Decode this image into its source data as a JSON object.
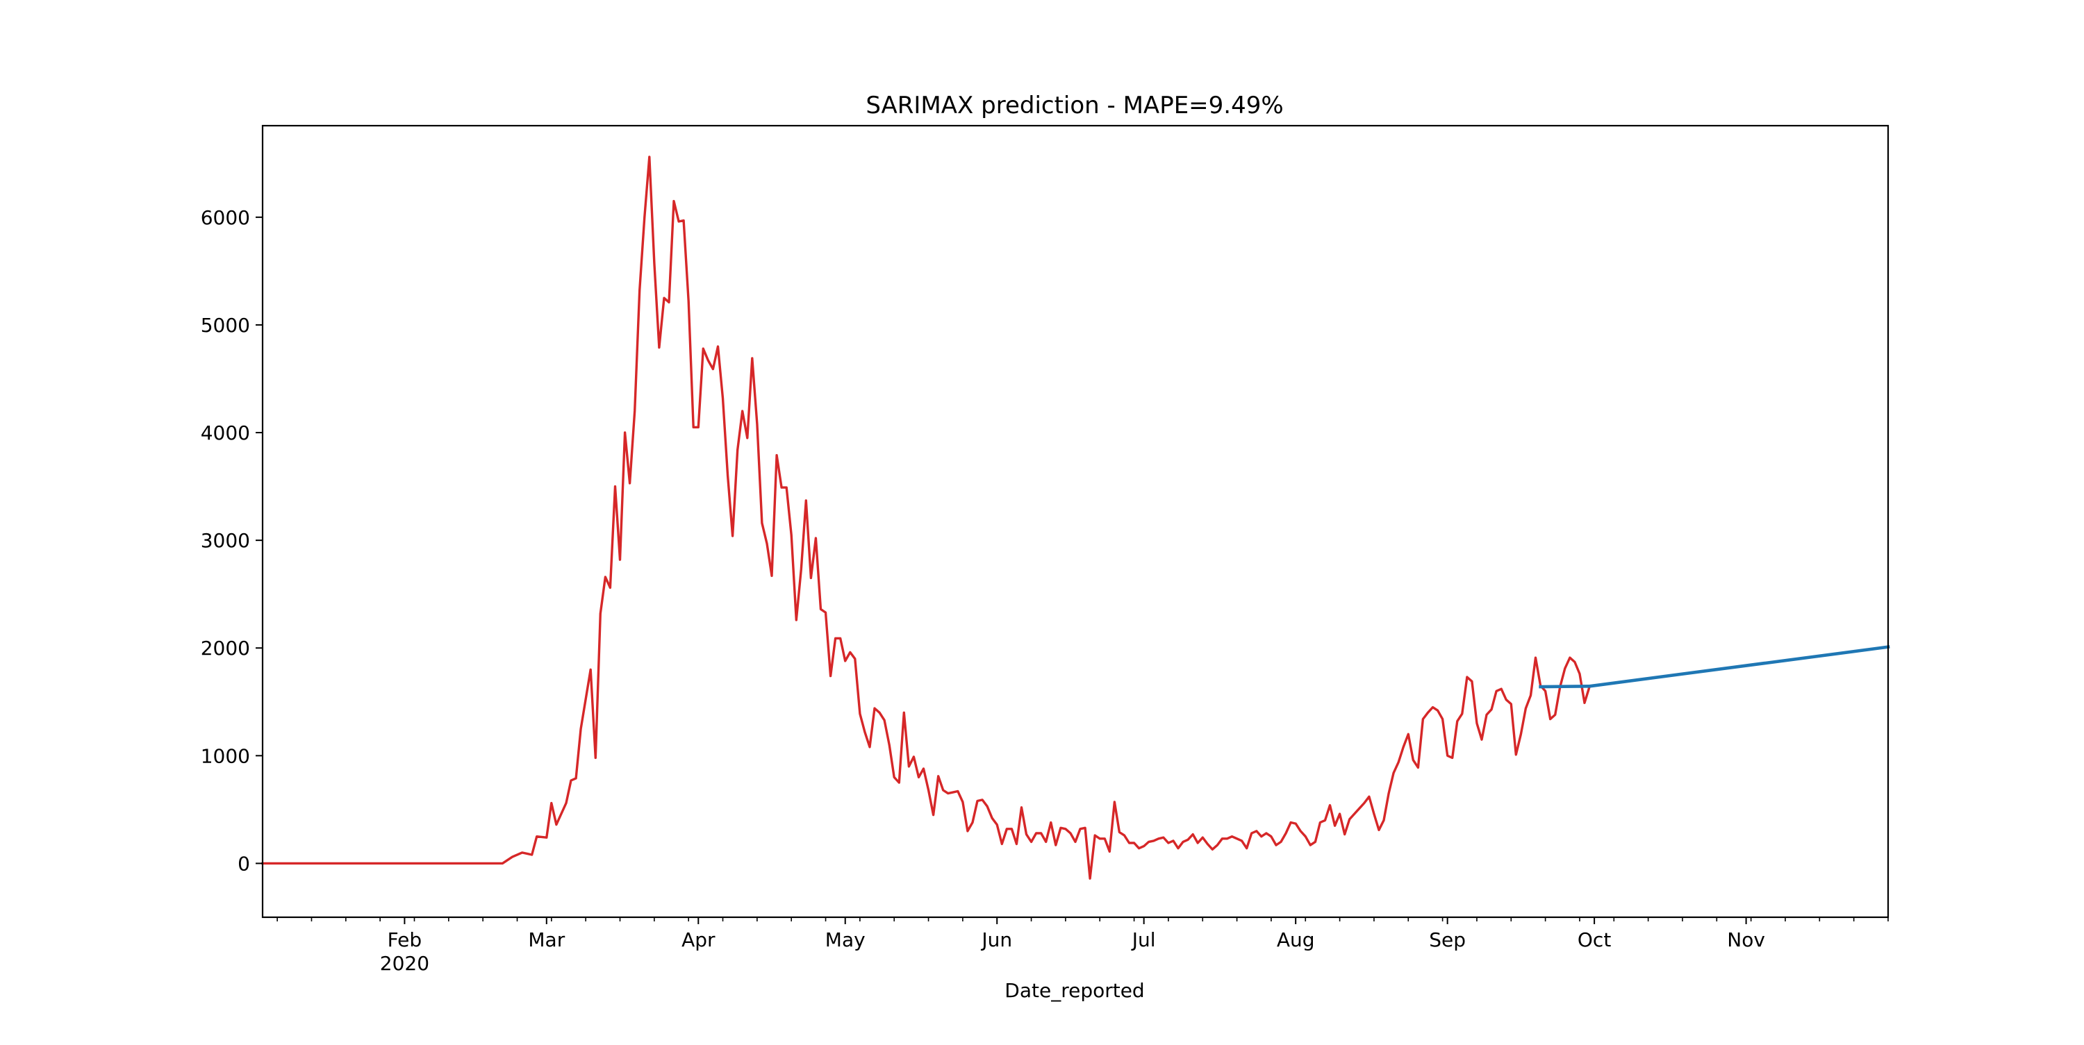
{
  "chart_data": {
    "type": "line",
    "title": "SARIMAX prediction - MAPE=9.49%",
    "xlabel": "Date_reported",
    "ylabel": "",
    "xlim": [
      "2020-01-03",
      "2020-11-30"
    ],
    "ylim": [
      -500,
      6850
    ],
    "grid": false,
    "legend": "none",
    "x_tick_labels": [
      {
        "date": "2020-02-01",
        "label": "Feb",
        "sublabel": "2020"
      },
      {
        "date": "2020-03-01",
        "label": "Mar",
        "sublabel": ""
      },
      {
        "date": "2020-04-01",
        "label": "Apr",
        "sublabel": ""
      },
      {
        "date": "2020-05-01",
        "label": "May",
        "sublabel": ""
      },
      {
        "date": "2020-06-01",
        "label": "Jun",
        "sublabel": ""
      },
      {
        "date": "2020-07-01",
        "label": "Jul",
        "sublabel": ""
      },
      {
        "date": "2020-08-01",
        "label": "Aug",
        "sublabel": ""
      },
      {
        "date": "2020-09-01",
        "label": "Sep",
        "sublabel": ""
      },
      {
        "date": "2020-10-01",
        "label": "Oct",
        "sublabel": ""
      },
      {
        "date": "2020-11-01",
        "label": "Nov",
        "sublabel": ""
      }
    ],
    "y_ticks": [
      0,
      1000,
      2000,
      3000,
      4000,
      5000,
      6000
    ],
    "series": [
      {
        "color": "#d62728",
        "points": [
          [
            "2020-01-03",
            0
          ],
          [
            "2020-02-21",
            0
          ],
          [
            "2020-02-23",
            60
          ],
          [
            "2020-02-25",
            100
          ],
          [
            "2020-02-27",
            80
          ],
          [
            "2020-02-28",
            250
          ],
          [
            "2020-03-01",
            240
          ],
          [
            "2020-03-02",
            560
          ],
          [
            "2020-03-03",
            360
          ],
          [
            "2020-03-05",
            560
          ],
          [
            "2020-03-06",
            770
          ],
          [
            "2020-03-07",
            790
          ],
          [
            "2020-03-08",
            1250
          ],
          [
            "2020-03-10",
            1800
          ],
          [
            "2020-03-11",
            980
          ],
          [
            "2020-03-12",
            2320
          ],
          [
            "2020-03-13",
            2660
          ],
          [
            "2020-03-14",
            2560
          ],
          [
            "2020-03-15",
            3500
          ],
          [
            "2020-03-16",
            2820
          ],
          [
            "2020-03-17",
            4000
          ],
          [
            "2020-03-18",
            3530
          ],
          [
            "2020-03-19",
            4200
          ],
          [
            "2020-03-20",
            5320
          ],
          [
            "2020-03-21",
            6000
          ],
          [
            "2020-03-22",
            6560
          ],
          [
            "2020-03-23",
            5570
          ],
          [
            "2020-03-24",
            4790
          ],
          [
            "2020-03-25",
            5250
          ],
          [
            "2020-03-26",
            5210
          ],
          [
            "2020-03-27",
            6150
          ],
          [
            "2020-03-28",
            5960
          ],
          [
            "2020-03-29",
            5970
          ],
          [
            "2020-03-30",
            5220
          ],
          [
            "2020-03-31",
            4050
          ],
          [
            "2020-04-01",
            4050
          ],
          [
            "2020-04-02",
            4780
          ],
          [
            "2020-04-03",
            4670
          ],
          [
            "2020-04-04",
            4590
          ],
          [
            "2020-04-05",
            4800
          ],
          [
            "2020-04-06",
            4320
          ],
          [
            "2020-04-07",
            3600
          ],
          [
            "2020-04-08",
            3040
          ],
          [
            "2020-04-09",
            3840
          ],
          [
            "2020-04-10",
            4200
          ],
          [
            "2020-04-11",
            3950
          ],
          [
            "2020-04-12",
            4690
          ],
          [
            "2020-04-13",
            4080
          ],
          [
            "2020-04-14",
            3160
          ],
          [
            "2020-04-15",
            2970
          ],
          [
            "2020-04-16",
            2670
          ],
          [
            "2020-04-17",
            3790
          ],
          [
            "2020-04-18",
            3490
          ],
          [
            "2020-04-19",
            3490
          ],
          [
            "2020-04-20",
            3050
          ],
          [
            "2020-04-21",
            2260
          ],
          [
            "2020-04-22",
            2730
          ],
          [
            "2020-04-23",
            3370
          ],
          [
            "2020-04-24",
            2650
          ],
          [
            "2020-04-25",
            3020
          ],
          [
            "2020-04-26",
            2360
          ],
          [
            "2020-04-27",
            2330
          ],
          [
            "2020-04-28",
            1740
          ],
          [
            "2020-04-29",
            2090
          ],
          [
            "2020-04-30",
            2090
          ],
          [
            "2020-05-01",
            1880
          ],
          [
            "2020-05-02",
            1960
          ],
          [
            "2020-05-03",
            1900
          ],
          [
            "2020-05-04",
            1390
          ],
          [
            "2020-05-05",
            1220
          ],
          [
            "2020-05-06",
            1080
          ],
          [
            "2020-05-07",
            1440
          ],
          [
            "2020-05-08",
            1400
          ],
          [
            "2020-05-09",
            1330
          ],
          [
            "2020-05-10",
            1100
          ],
          [
            "2020-05-11",
            800
          ],
          [
            "2020-05-12",
            750
          ],
          [
            "2020-05-13",
            1400
          ],
          [
            "2020-05-14",
            900
          ],
          [
            "2020-05-15",
            990
          ],
          [
            "2020-05-16",
            800
          ],
          [
            "2020-05-17",
            880
          ],
          [
            "2020-05-18",
            680
          ],
          [
            "2020-05-19",
            450
          ],
          [
            "2020-05-20",
            810
          ],
          [
            "2020-05-21",
            680
          ],
          [
            "2020-05-22",
            650
          ],
          [
            "2020-05-23",
            660
          ],
          [
            "2020-05-24",
            670
          ],
          [
            "2020-05-25",
            570
          ],
          [
            "2020-05-26",
            300
          ],
          [
            "2020-05-27",
            380
          ],
          [
            "2020-05-28",
            580
          ],
          [
            "2020-05-29",
            590
          ],
          [
            "2020-05-30",
            530
          ],
          [
            "2020-05-31",
            420
          ],
          [
            "2020-06-01",
            360
          ],
          [
            "2020-06-02",
            180
          ],
          [
            "2020-06-03",
            320
          ],
          [
            "2020-06-04",
            320
          ],
          [
            "2020-06-05",
            180
          ],
          [
            "2020-06-06",
            520
          ],
          [
            "2020-06-07",
            270
          ],
          [
            "2020-06-08",
            200
          ],
          [
            "2020-06-09",
            280
          ],
          [
            "2020-06-10",
            280
          ],
          [
            "2020-06-11",
            200
          ],
          [
            "2020-06-12",
            380
          ],
          [
            "2020-06-13",
            170
          ],
          [
            "2020-06-14",
            330
          ],
          [
            "2020-06-15",
            320
          ],
          [
            "2020-06-16",
            280
          ],
          [
            "2020-06-17",
            200
          ],
          [
            "2020-06-18",
            320
          ],
          [
            "2020-06-19",
            330
          ],
          [
            "2020-06-20",
            -140
          ],
          [
            "2020-06-21",
            260
          ],
          [
            "2020-06-22",
            230
          ],
          [
            "2020-06-23",
            230
          ],
          [
            "2020-06-24",
            110
          ],
          [
            "2020-06-25",
            570
          ],
          [
            "2020-06-26",
            290
          ],
          [
            "2020-06-27",
            260
          ],
          [
            "2020-06-28",
            190
          ],
          [
            "2020-06-29",
            190
          ],
          [
            "2020-06-30",
            140
          ],
          [
            "2020-07-01",
            160
          ],
          [
            "2020-07-02",
            200
          ],
          [
            "2020-07-03",
            210
          ],
          [
            "2020-07-04",
            230
          ],
          [
            "2020-07-05",
            240
          ],
          [
            "2020-07-06",
            190
          ],
          [
            "2020-07-07",
            210
          ],
          [
            "2020-07-08",
            140
          ],
          [
            "2020-07-09",
            200
          ],
          [
            "2020-07-10",
            220
          ],
          [
            "2020-07-11",
            270
          ],
          [
            "2020-07-12",
            190
          ],
          [
            "2020-07-13",
            240
          ],
          [
            "2020-07-14",
            180
          ],
          [
            "2020-07-15",
            130
          ],
          [
            "2020-07-16",
            170
          ],
          [
            "2020-07-17",
            230
          ],
          [
            "2020-07-18",
            230
          ],
          [
            "2020-07-19",
            250
          ],
          [
            "2020-07-20",
            230
          ],
          [
            "2020-07-21",
            210
          ],
          [
            "2020-07-22",
            140
          ],
          [
            "2020-07-23",
            280
          ],
          [
            "2020-07-24",
            300
          ],
          [
            "2020-07-25",
            250
          ],
          [
            "2020-07-26",
            280
          ],
          [
            "2020-07-27",
            250
          ],
          [
            "2020-07-28",
            170
          ],
          [
            "2020-07-29",
            200
          ],
          [
            "2020-07-30",
            280
          ],
          [
            "2020-07-31",
            380
          ],
          [
            "2020-08-01",
            370
          ],
          [
            "2020-08-02",
            300
          ],
          [
            "2020-08-03",
            250
          ],
          [
            "2020-08-04",
            170
          ],
          [
            "2020-08-05",
            200
          ],
          [
            "2020-08-06",
            380
          ],
          [
            "2020-08-07",
            400
          ],
          [
            "2020-08-08",
            540
          ],
          [
            "2020-08-09",
            350
          ],
          [
            "2020-08-10",
            460
          ],
          [
            "2020-08-11",
            270
          ],
          [
            "2020-08-12",
            410
          ],
          [
            "2020-08-13",
            460
          ],
          [
            "2020-08-14",
            510
          ],
          [
            "2020-08-15",
            560
          ],
          [
            "2020-08-16",
            620
          ],
          [
            "2020-08-17",
            460
          ],
          [
            "2020-08-18",
            310
          ],
          [
            "2020-08-19",
            400
          ],
          [
            "2020-08-20",
            650
          ],
          [
            "2020-08-21",
            840
          ],
          [
            "2020-08-22",
            940
          ],
          [
            "2020-08-23",
            1080
          ],
          [
            "2020-08-24",
            1200
          ],
          [
            "2020-08-25",
            960
          ],
          [
            "2020-08-26",
            890
          ],
          [
            "2020-08-27",
            1340
          ],
          [
            "2020-08-28",
            1400
          ],
          [
            "2020-08-29",
            1450
          ],
          [
            "2020-08-30",
            1420
          ],
          [
            "2020-08-31",
            1340
          ],
          [
            "2020-09-01",
            1000
          ],
          [
            "2020-09-02",
            980
          ],
          [
            "2020-09-03",
            1320
          ],
          [
            "2020-09-04",
            1390
          ],
          [
            "2020-09-05",
            1730
          ],
          [
            "2020-09-06",
            1690
          ],
          [
            "2020-09-07",
            1300
          ],
          [
            "2020-09-08",
            1150
          ],
          [
            "2020-09-09",
            1380
          ],
          [
            "2020-09-10",
            1430
          ],
          [
            "2020-09-11",
            1600
          ],
          [
            "2020-09-12",
            1620
          ],
          [
            "2020-09-13",
            1520
          ],
          [
            "2020-09-14",
            1480
          ],
          [
            "2020-09-15",
            1010
          ],
          [
            "2020-09-16",
            1200
          ],
          [
            "2020-09-17",
            1440
          ],
          [
            "2020-09-18",
            1560
          ],
          [
            "2020-09-19",
            1910
          ],
          [
            "2020-09-20",
            1650
          ],
          [
            "2020-09-21",
            1600
          ],
          [
            "2020-09-22",
            1340
          ],
          [
            "2020-09-23",
            1380
          ],
          [
            "2020-09-24",
            1640
          ],
          [
            "2020-09-25",
            1810
          ],
          [
            "2020-09-26",
            1910
          ],
          [
            "2020-09-27",
            1870
          ],
          [
            "2020-09-28",
            1760
          ],
          [
            "2020-09-29",
            1490
          ],
          [
            "2020-09-30",
            1640
          ]
        ]
      },
      {
        "color": "#1f77b4",
        "points": [
          [
            "2020-09-20",
            1640
          ],
          [
            "2020-09-30",
            1645
          ],
          [
            "2020-11-30",
            2010
          ]
        ]
      }
    ]
  }
}
